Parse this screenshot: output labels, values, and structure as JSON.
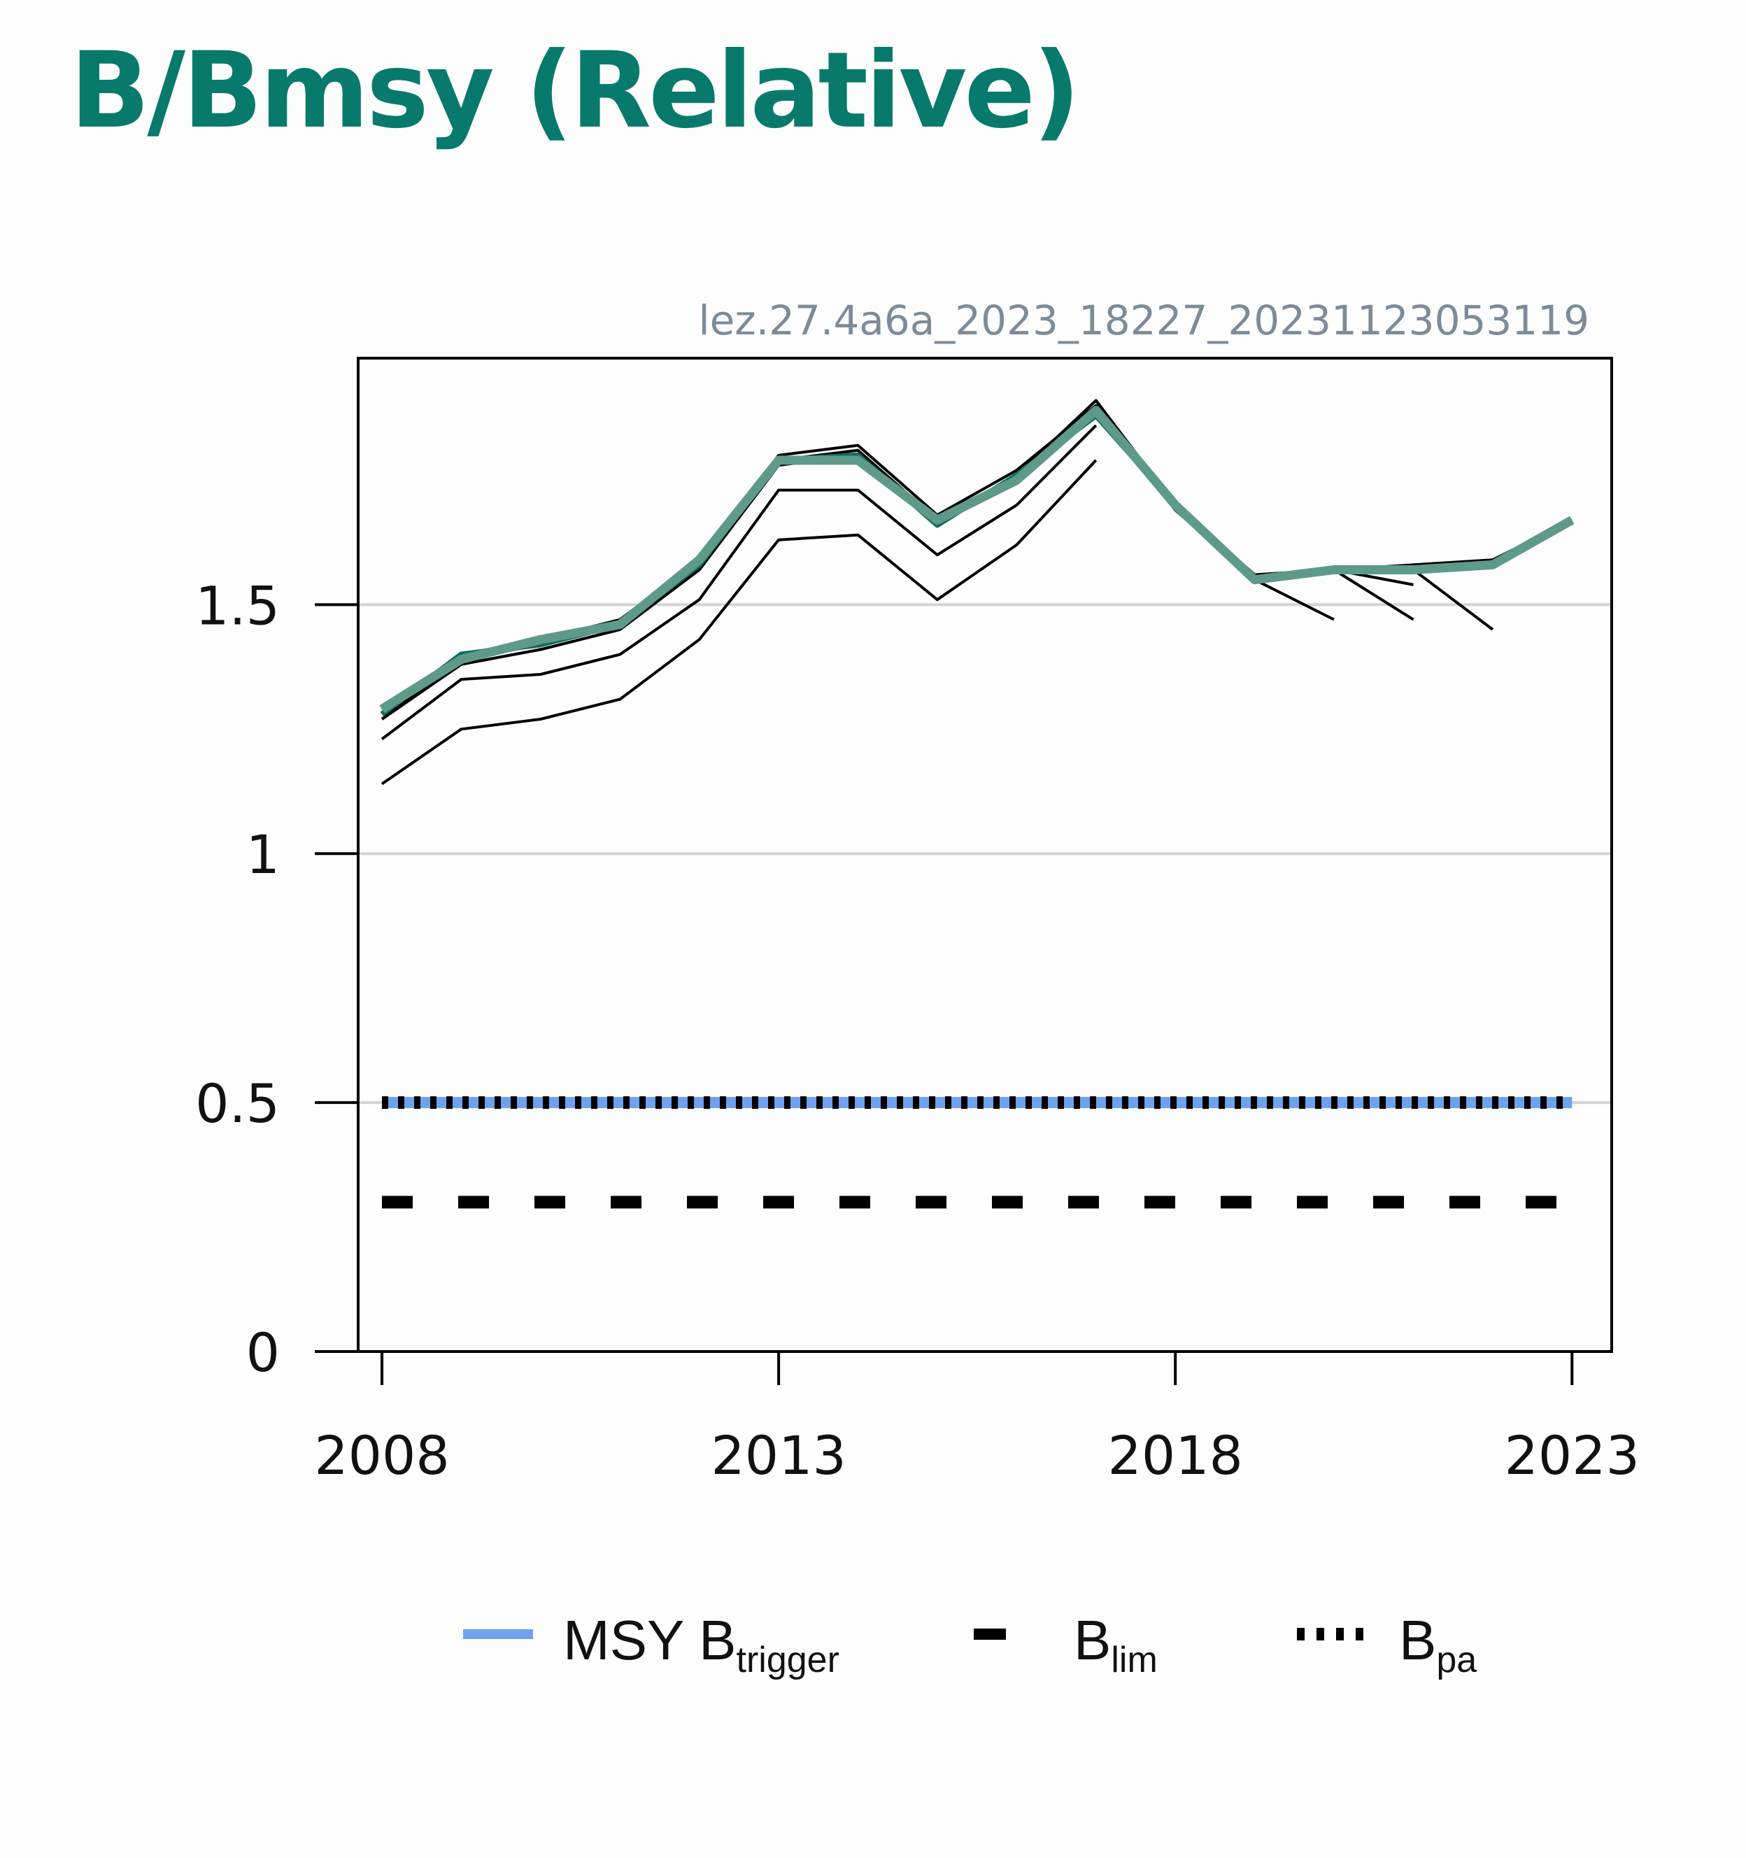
{
  "title": "B/Bmsy (Relative)",
  "colors": {
    "title": "#087a6c",
    "stock_series": "#5e9a89",
    "assessment_series": "#0f6d5d",
    "msy_btrigger": "#6ea1ef",
    "reference_lines": "#000000",
    "gridline": "#d3d3d3",
    "watermark": "#7d8b99"
  },
  "chart_data": {
    "type": "line",
    "title": "B/Bmsy (Relative)",
    "watermark": "lez.27.4a6a_2023_18227_20231123053119",
    "xlabel": "",
    "ylabel": "",
    "xlim": [
      2007.7,
      2023.5
    ],
    "ylim": [
      0,
      1.995
    ],
    "x_ticks": [
      2008,
      2013,
      2018,
      2023
    ],
    "y_ticks": [
      0,
      0.5,
      1,
      1.5
    ],
    "y_tick_labels": [
      "0",
      "0.5",
      "1",
      "1.5"
    ],
    "grid": {
      "horizontal": true,
      "vertical": false
    },
    "legend_position": "bottom",
    "series": [
      {
        "role": "upper",
        "style": "thin-black",
        "x": [
          2008,
          2009,
          2010,
          2011,
          2012,
          2013,
          2014,
          2015,
          2016,
          2017,
          2018,
          2019,
          2020,
          2021,
          2022,
          2023
        ],
        "values": [
          1.29,
          1.4,
          1.43,
          1.47,
          1.59,
          1.8,
          1.82,
          1.68,
          1.77,
          1.9,
          1.7,
          1.56,
          1.57,
          1.58,
          1.59,
          1.67
        ]
      },
      {
        "role": "retro-1",
        "style": "thin-black",
        "x": [
          2008,
          2009,
          2010,
          2011,
          2012,
          2013,
          2014,
          2015,
          2016,
          2017,
          2018,
          2019,
          2020,
          2021,
          2022
        ],
        "values": [
          1.28,
          1.39,
          1.42,
          1.46,
          1.58,
          1.79,
          1.81,
          1.67,
          1.76,
          1.9,
          1.7,
          1.56,
          1.57,
          1.57,
          1.45
        ]
      },
      {
        "role": "retro-2",
        "style": "thin-black",
        "x": [
          2008,
          2009,
          2010,
          2011,
          2012,
          2013,
          2014,
          2015,
          2016,
          2017,
          2018,
          2019,
          2020,
          2021
        ],
        "values": [
          1.27,
          1.38,
          1.41,
          1.45,
          1.57,
          1.78,
          1.8,
          1.66,
          1.75,
          1.89,
          1.69,
          1.55,
          1.57,
          1.54
        ]
      },
      {
        "role": "retro-3",
        "style": "thin-black",
        "x": [
          2008,
          2009,
          2010,
          2011,
          2012,
          2013,
          2014,
          2015,
          2016,
          2017,
          2018,
          2019,
          2020,
          2021
        ],
        "values": [
          1.27,
          1.38,
          1.41,
          1.45,
          1.57,
          1.78,
          1.8,
          1.66,
          1.75,
          1.89,
          1.7,
          1.55,
          1.57,
          1.47
        ]
      },
      {
        "role": "retro-4",
        "style": "thin-black",
        "x": [
          2008,
          2009,
          2010,
          2011,
          2012,
          2013,
          2014,
          2015,
          2016,
          2017,
          2018,
          2019,
          2020
        ],
        "values": [
          1.27,
          1.39,
          1.42,
          1.46,
          1.58,
          1.79,
          1.81,
          1.67,
          1.76,
          1.91,
          1.7,
          1.55,
          1.47
        ]
      },
      {
        "role": "retro-5",
        "style": "thin-black",
        "x": [
          2008,
          2009,
          2010,
          2011,
          2012,
          2013,
          2014,
          2015,
          2016,
          2017
        ],
        "values": [
          1.23,
          1.35,
          1.36,
          1.4,
          1.51,
          1.73,
          1.73,
          1.6,
          1.7,
          1.86
        ]
      },
      {
        "role": "retro-6",
        "style": "thin-black",
        "x": [
          2008,
          2009,
          2010,
          2011,
          2012,
          2013,
          2014,
          2015,
          2016,
          2017
        ],
        "values": [
          1.14,
          1.25,
          1.27,
          1.31,
          1.43,
          1.63,
          1.64,
          1.51,
          1.62,
          1.79
        ]
      },
      {
        "role": "assessment",
        "style": "thick-dark-teal",
        "x": [
          2008,
          2009,
          2010,
          2011,
          2012,
          2013,
          2014,
          2015,
          2016,
          2017,
          2018
        ],
        "values": [
          1.28,
          1.4,
          1.42,
          1.46,
          1.58,
          1.79,
          1.8,
          1.66,
          1.76,
          1.88,
          1.7
        ]
      },
      {
        "role": "stock",
        "style": "thick-teal",
        "x": [
          2008,
          2009,
          2010,
          2011,
          2012,
          2013,
          2014,
          2015,
          2016,
          2017,
          2018,
          2019,
          2020,
          2021,
          2022,
          2023
        ],
        "values": [
          1.29,
          1.39,
          1.43,
          1.46,
          1.59,
          1.79,
          1.79,
          1.67,
          1.75,
          1.89,
          1.7,
          1.55,
          1.57,
          1.57,
          1.58,
          1.67
        ]
      }
    ],
    "reference_lines": [
      {
        "name_main": "MSY B",
        "name_sub": "trigger",
        "value": 0.5,
        "style": "solid"
      },
      {
        "name_main": "B",
        "name_sub": "lim",
        "value": 0.3,
        "style": "dashed"
      },
      {
        "name_main": "B",
        "name_sub": "pa",
        "value": 0.5,
        "style": "dotted"
      }
    ]
  }
}
